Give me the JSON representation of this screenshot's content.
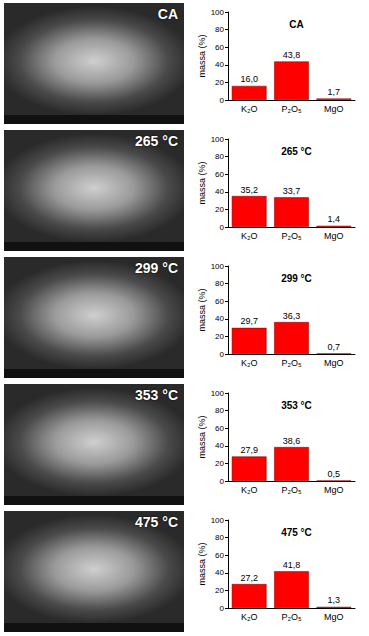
{
  "chart_data": [
    {
      "type": "bar",
      "title": "CA",
      "ylabel": "massa (%)",
      "categories": [
        "K₂O",
        "P₂O₅",
        "MgO"
      ],
      "values": [
        16.0,
        43.8,
        1.7
      ],
      "value_labels": [
        "16,0",
        "43,8",
        "1,7"
      ],
      "color": "#ff0000",
      "ylim": [
        0,
        100
      ],
      "yticks": [
        0,
        20,
        40,
        60,
        80,
        100
      ],
      "data_labels": true,
      "grid": false
    },
    {
      "type": "bar",
      "title": "265 °C",
      "ylabel": "massa (%)",
      "categories": [
        "K₂O",
        "P₂O₅",
        "MgO"
      ],
      "values": [
        35.2,
        33.7,
        1.4
      ],
      "value_labels": [
        "35,2",
        "33,7",
        "1,4"
      ],
      "color": "#ff0000",
      "ylim": [
        0,
        100
      ],
      "yticks": [
        0,
        20,
        40,
        60,
        80,
        100
      ],
      "data_labels": true,
      "grid": false
    },
    {
      "type": "bar",
      "title": "299 °C",
      "ylabel": "massa (%)",
      "categories": [
        "K₂O",
        "P₂O₅",
        "MgO"
      ],
      "values": [
        29.7,
        36.3,
        0.7
      ],
      "value_labels": [
        "29,7",
        "36,3",
        "0,7"
      ],
      "color": "#ff0000",
      "ylim": [
        0,
        100
      ],
      "yticks": [
        0,
        20,
        40,
        60,
        80,
        100
      ],
      "data_labels": true,
      "grid": false
    },
    {
      "type": "bar",
      "title": "353 °C",
      "ylabel": "massa (%)",
      "categories": [
        "K₂O",
        "P₂O₅",
        "MgO"
      ],
      "values": [
        27.9,
        38.6,
        0.5
      ],
      "value_labels": [
        "27,9",
        "38,6",
        "0,5"
      ],
      "color": "#ff0000",
      "ylim": [
        0,
        100
      ],
      "yticks": [
        0,
        20,
        40,
        60,
        80,
        100
      ],
      "data_labels": true,
      "grid": false
    },
    {
      "type": "bar",
      "title": "475 °C",
      "ylabel": "massa (%)",
      "categories": [
        "K₂O",
        "P₂O₅",
        "MgO"
      ],
      "values": [
        27.2,
        41.8,
        1.3
      ],
      "value_labels": [
        "27,2",
        "41,8",
        "1,3"
      ],
      "color": "#ff0000",
      "ylim": [
        0,
        100
      ],
      "yticks": [
        0,
        20,
        40,
        60,
        80,
        100
      ],
      "data_labels": true,
      "grid": false
    }
  ],
  "images": [
    {
      "label": "CA"
    },
    {
      "label": "265 °C"
    },
    {
      "label": "299 °C"
    },
    {
      "label": "353 °C"
    },
    {
      "label": "475 °C"
    }
  ]
}
